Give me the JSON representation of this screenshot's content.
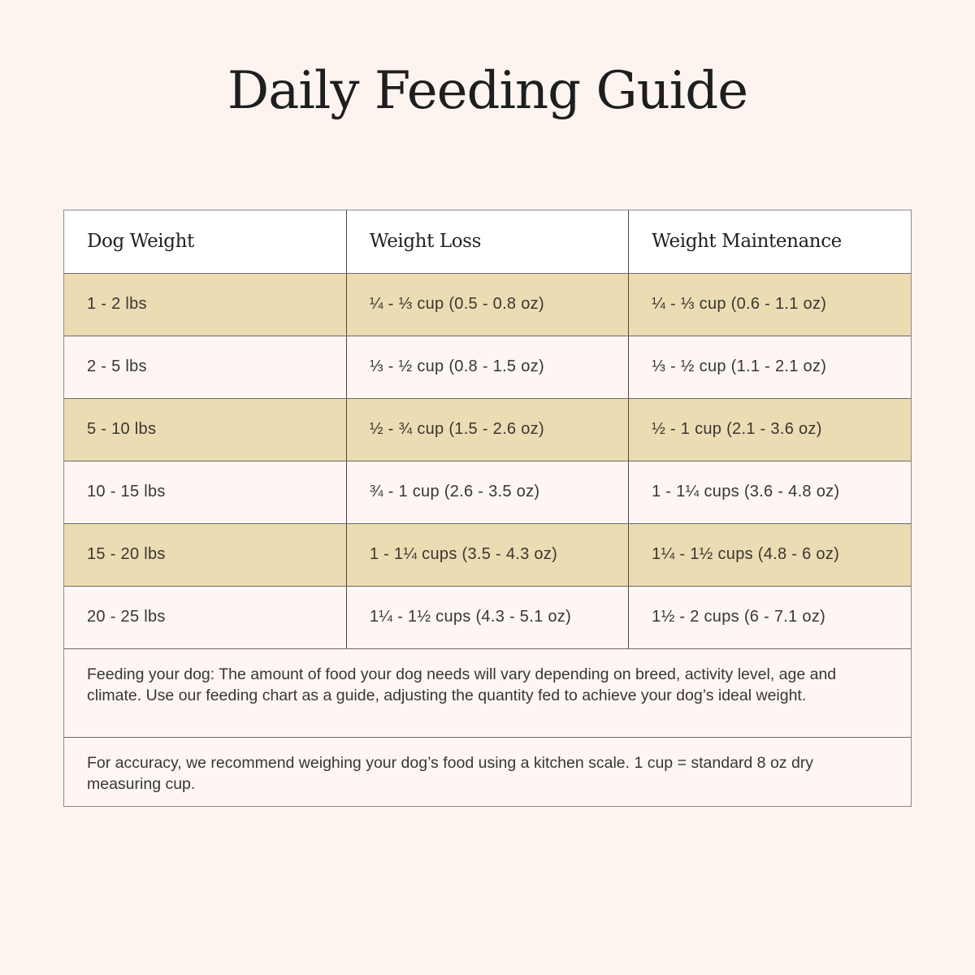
{
  "title": "Daily Feeding Guide",
  "colors": {
    "background": "#fdf4f0",
    "header_row": "#ffffff",
    "shaded_row": "#ecdcb3",
    "plain_row": "#fdf6f3",
    "border": "#6e6a66",
    "text": "#3a3632"
  },
  "table": {
    "headers": [
      "Dog Weight",
      "Weight Loss",
      "Weight Maintenance"
    ],
    "rows": [
      [
        "1 - 2 lbs",
        "¼ - ⅓ cup (0.5 - 0.8 oz)",
        "¼ - ⅓ cup (0.6 - 1.1 oz)"
      ],
      [
        "2 - 5 lbs",
        "⅓ - ½ cup (0.8 - 1.5 oz)",
        "⅓ - ½ cup (1.1 - 2.1 oz)"
      ],
      [
        "5 - 10 lbs",
        "½ - ¾ cup (1.5 - 2.6 oz)",
        "½ - 1 cup (2.1 - 3.6 oz)"
      ],
      [
        "10 - 15 lbs",
        "¾ - 1 cup (2.6 - 3.5 oz)",
        "1 - 1¼ cups (3.6 - 4.8 oz)"
      ],
      [
        "15 - 20 lbs",
        "1 - 1¼ cups (3.5 - 4.3 oz)",
        "1¼ - 1½ cups (4.8 - 6 oz)"
      ],
      [
        "20 - 25 lbs",
        "1¼ - 1½ cups (4.3 - 5.1 oz)",
        "1½ - 2 cups (6 - 7.1 oz)"
      ]
    ]
  },
  "notes": [
    "Feeding your dog: The amount of food your dog needs will vary depending on breed, activity level, age and climate. Use our feeding chart as a guide, adjusting the quantity fed to achieve your dog’s ideal weight.",
    "For accuracy, we recommend weighing your dog’s food using a kitchen scale. 1 cup = standard 8 oz dry measuring cup."
  ]
}
